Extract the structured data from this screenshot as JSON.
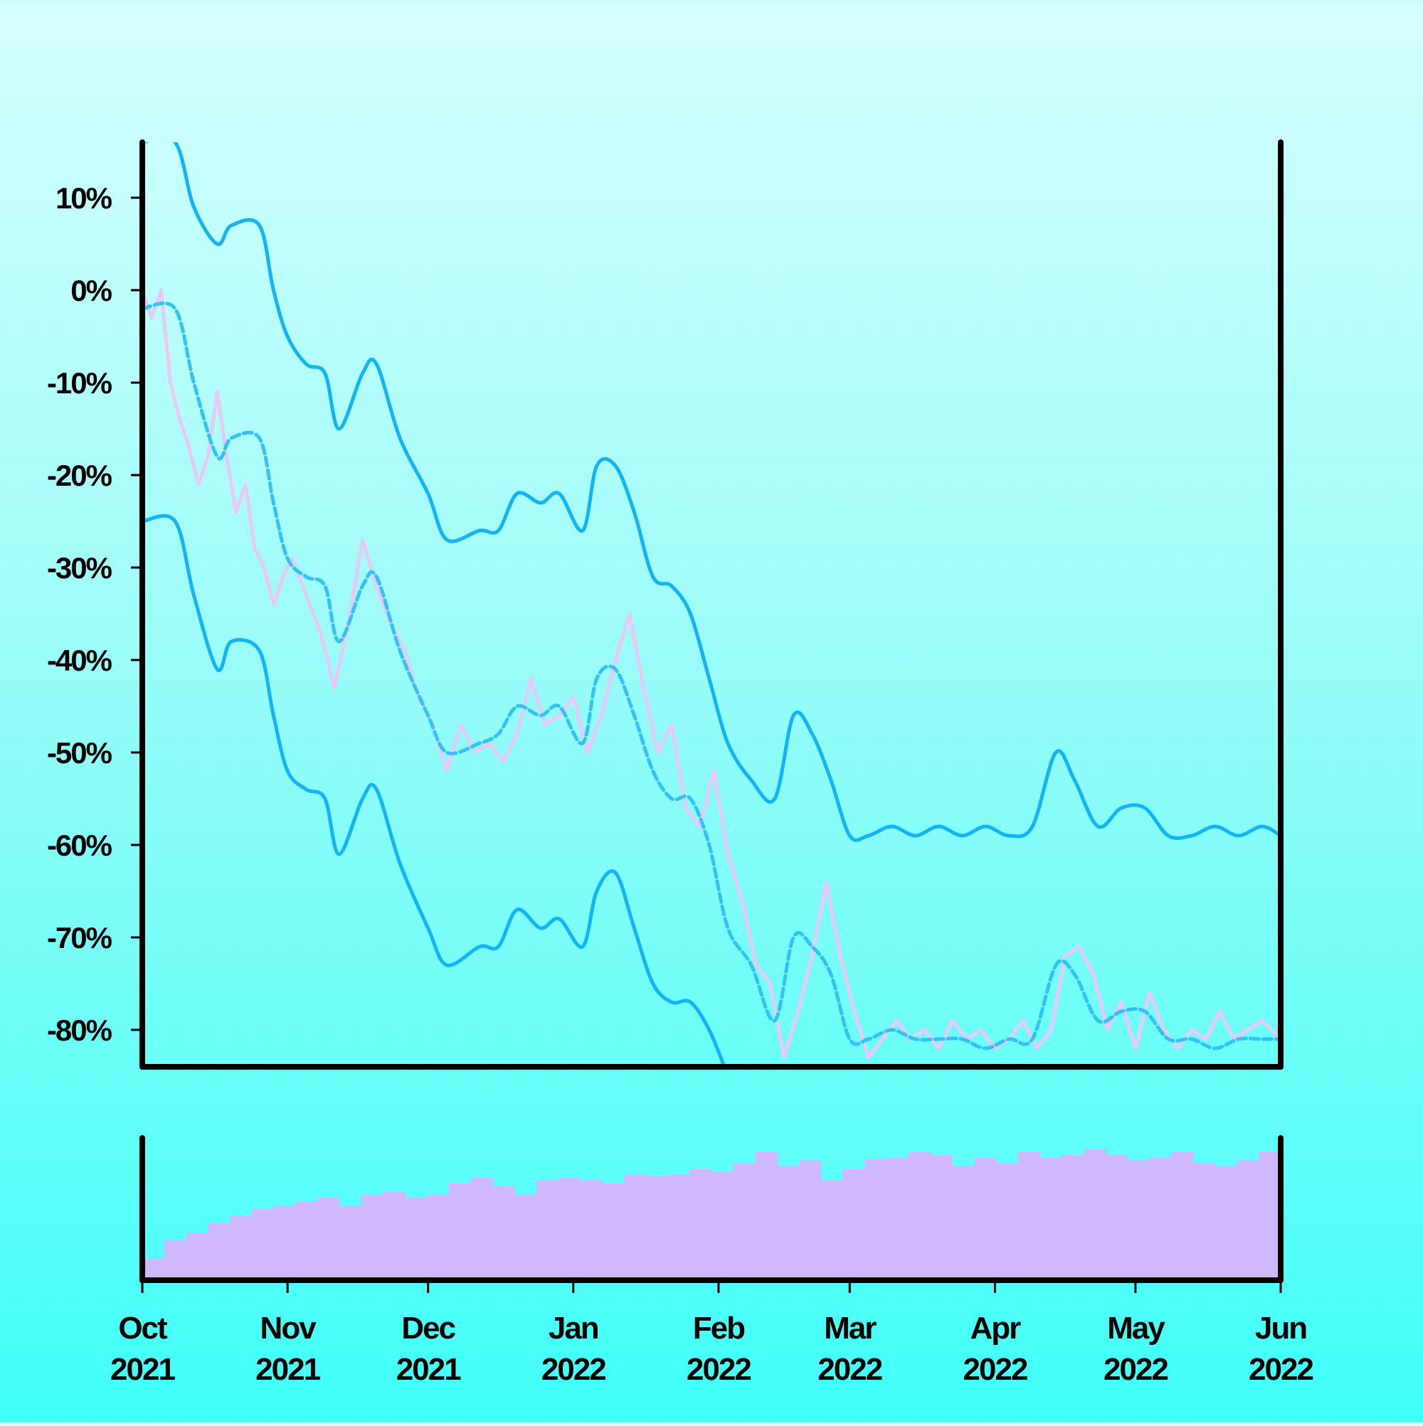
{
  "chart_data": [
    {
      "type": "line",
      "panel": "price",
      "title": "",
      "xlabel": "",
      "ylabel": "",
      "y_unit": "%",
      "ylim": [
        -84,
        16
      ],
      "xlim": [
        "2021-10-01",
        "2022-06-01"
      ],
      "grid": false,
      "legend": "none",
      "y_ticks": [
        "10%",
        "0%",
        "-10%",
        "-20%",
        "-30%",
        "-40%",
        "-50%",
        "-60%",
        "-70%",
        "-80%"
      ],
      "y_tick_values": [
        10,
        0,
        -10,
        -20,
        -30,
        -40,
        -50,
        -60,
        -70,
        -80
      ],
      "x_ticks": [
        {
          "month": "Oct",
          "year": "2021",
          "date": "2021-10-01"
        },
        {
          "month": "Nov",
          "year": "2021",
          "date": "2021-11-01"
        },
        {
          "month": "Dec",
          "year": "2021",
          "date": "2021-12-01"
        },
        {
          "month": "Jan",
          "year": "2022",
          "date": "2022-01-01"
        },
        {
          "month": "Feb",
          "year": "2022",
          "date": "2022-02-01"
        },
        {
          "month": "Mar",
          "year": "2022",
          "date": "2022-03-01"
        },
        {
          "month": "Apr",
          "year": "2022",
          "date": "2022-04-01"
        },
        {
          "month": "May",
          "year": "2022",
          "date": "2022-05-01"
        },
        {
          "month": "Jun",
          "year": "2022",
          "date": "2022-06-01"
        }
      ],
      "series": [
        {
          "role": "upper-band",
          "style": "solid",
          "color": "#12b4f5",
          "x": [
            "2021-10-01",
            "2021-10-08",
            "2021-10-12",
            "2021-10-17",
            "2021-10-20",
            "2021-10-26",
            "2021-10-29",
            "2021-11-01",
            "2021-11-05",
            "2021-11-09",
            "2021-11-12",
            "2021-11-17",
            "2021-11-20",
            "2021-11-25",
            "2021-12-01",
            "2021-12-05",
            "2021-12-12",
            "2021-12-16",
            "2021-12-20",
            "2021-12-25",
            "2021-12-29",
            "2022-01-03",
            "2022-01-06",
            "2022-01-10",
            "2022-01-14",
            "2022-01-18",
            "2022-01-22",
            "2022-01-26",
            "2022-01-30",
            "2022-02-03",
            "2022-02-08",
            "2022-02-13",
            "2022-02-17",
            "2022-02-21",
            "2022-02-25",
            "2022-03-01",
            "2022-03-05",
            "2022-03-10",
            "2022-03-15",
            "2022-03-20",
            "2022-03-25",
            "2022-03-30",
            "2022-04-04",
            "2022-04-09",
            "2022-04-14",
            "2022-04-18",
            "2022-04-23",
            "2022-04-28",
            "2022-05-03",
            "2022-05-08",
            "2022-05-13",
            "2022-05-18",
            "2022-05-23",
            "2022-05-28",
            "2022-06-01"
          ],
          "y": [
            16,
            16,
            9,
            5,
            7,
            7,
            0,
            -5,
            -8,
            -9,
            -15,
            -9,
            -8,
            -16,
            -22,
            -27,
            -26,
            -26,
            -22,
            -23,
            -22,
            -26,
            -19,
            -19,
            -24,
            -31,
            -32,
            -35,
            -42,
            -49,
            -53,
            -55,
            -46,
            -48,
            -53,
            -59,
            -59,
            -58,
            -59,
            -58,
            -59,
            -58,
            -59,
            -58,
            -50,
            -53,
            -58,
            -56,
            -56,
            -59,
            -59,
            -58,
            -59,
            -58,
            -59
          ]
        },
        {
          "role": "center-line",
          "style": "dashed",
          "color": "#34c2f6",
          "x": [
            "2021-10-01",
            "2021-10-08",
            "2021-10-12",
            "2021-10-17",
            "2021-10-20",
            "2021-10-26",
            "2021-10-29",
            "2021-11-01",
            "2021-11-05",
            "2021-11-09",
            "2021-11-12",
            "2021-11-17",
            "2021-11-20",
            "2021-11-25",
            "2021-12-01",
            "2021-12-05",
            "2021-12-12",
            "2021-12-16",
            "2021-12-20",
            "2021-12-25",
            "2021-12-29",
            "2022-01-03",
            "2022-01-06",
            "2022-01-10",
            "2022-01-14",
            "2022-01-18",
            "2022-01-22",
            "2022-01-26",
            "2022-01-30",
            "2022-02-03",
            "2022-02-08",
            "2022-02-13",
            "2022-02-17",
            "2022-02-21",
            "2022-02-25",
            "2022-03-01",
            "2022-03-05",
            "2022-03-10",
            "2022-03-15",
            "2022-03-20",
            "2022-03-25",
            "2022-03-30",
            "2022-04-04",
            "2022-04-09",
            "2022-04-14",
            "2022-04-18",
            "2022-04-23",
            "2022-04-28",
            "2022-05-03",
            "2022-05-08",
            "2022-05-13",
            "2022-05-18",
            "2022-05-23",
            "2022-05-28",
            "2022-06-01"
          ],
          "y": [
            -2,
            -2,
            -10,
            -18,
            -16,
            -16,
            -23,
            -29,
            -31,
            -32,
            -38,
            -32,
            -31,
            -39,
            -46,
            -50,
            -49,
            -48,
            -45,
            -46,
            -45,
            -49,
            -42,
            -41,
            -46,
            -52,
            -55,
            -55,
            -60,
            -69,
            -73,
            -79,
            -70,
            -71,
            -74,
            -81,
            -81,
            -80,
            -81,
            -81,
            -81,
            -82,
            -81,
            -81,
            -73,
            -74,
            -79,
            -78,
            -78,
            -81,
            -81,
            -82,
            -81,
            -81,
            -81
          ]
        },
        {
          "role": "lower-band",
          "style": "solid",
          "color": "#12b4f5",
          "x": [
            "2021-10-01",
            "2021-10-08",
            "2021-10-12",
            "2021-10-17",
            "2021-10-20",
            "2021-10-26",
            "2021-10-29",
            "2021-11-01",
            "2021-11-05",
            "2021-11-09",
            "2021-11-12",
            "2021-11-17",
            "2021-11-20",
            "2021-11-25",
            "2021-12-01",
            "2021-12-05",
            "2021-12-12",
            "2021-12-16",
            "2021-12-20",
            "2021-12-25",
            "2021-12-29",
            "2022-01-03",
            "2022-01-06",
            "2022-01-10",
            "2022-01-14",
            "2022-01-18",
            "2022-01-22",
            "2022-01-26",
            "2022-01-30",
            "2022-02-03"
          ],
          "y": [
            -25,
            -25,
            -33,
            -41,
            -38,
            -39,
            -46,
            -52,
            -54,
            -55,
            -61,
            -55,
            -54,
            -62,
            -69,
            -73,
            -71,
            -71,
            -67,
            -69,
            -68,
            -71,
            -65,
            -63,
            -69,
            -75,
            -77,
            -77,
            -80,
            -85
          ]
        },
        {
          "role": "price",
          "style": "solid",
          "color": "#e8c9f8",
          "x": [
            "2021-10-01",
            "2021-10-03",
            "2021-10-05",
            "2021-10-07",
            "2021-10-09",
            "2021-10-11",
            "2021-10-13",
            "2021-10-15",
            "2021-10-17",
            "2021-10-19",
            "2021-10-21",
            "2021-10-23",
            "2021-10-25",
            "2021-10-27",
            "2021-10-29",
            "2021-10-31",
            "2021-11-02",
            "2021-11-05",
            "2021-11-08",
            "2021-11-11",
            "2021-11-14",
            "2021-11-17",
            "2021-11-20",
            "2021-11-23",
            "2021-11-26",
            "2021-11-29",
            "2021-12-02",
            "2021-12-05",
            "2021-12-08",
            "2021-12-11",
            "2021-12-14",
            "2021-12-17",
            "2021-12-20",
            "2021-12-23",
            "2021-12-26",
            "2021-12-29",
            "2022-01-01",
            "2022-01-04",
            "2022-01-07",
            "2022-01-10",
            "2022-01-13",
            "2022-01-16",
            "2022-01-19",
            "2022-01-22",
            "2022-01-25",
            "2022-01-28",
            "2022-01-31",
            "2022-02-03",
            "2022-02-06",
            "2022-02-09",
            "2022-02-12",
            "2022-02-15",
            "2022-02-18",
            "2022-02-21",
            "2022-02-24",
            "2022-02-27",
            "2022-03-02",
            "2022-03-05",
            "2022-03-08",
            "2022-03-11",
            "2022-03-14",
            "2022-03-17",
            "2022-03-20",
            "2022-03-23",
            "2022-03-26",
            "2022-03-29",
            "2022-04-01",
            "2022-04-04",
            "2022-04-07",
            "2022-04-10",
            "2022-04-13",
            "2022-04-16",
            "2022-04-19",
            "2022-04-22",
            "2022-04-25",
            "2022-04-28",
            "2022-05-01",
            "2022-05-04",
            "2022-05-07",
            "2022-05-10",
            "2022-05-13",
            "2022-05-16",
            "2022-05-19",
            "2022-05-22",
            "2022-05-25",
            "2022-05-28",
            "2022-06-01"
          ],
          "y": [
            0,
            -3,
            0,
            -10,
            -14,
            -17,
            -21,
            -18,
            -11,
            -18,
            -24,
            -21,
            -28,
            -30,
            -34,
            -31,
            -29,
            -33,
            -37,
            -43,
            -36,
            -27,
            -32,
            -36,
            -39,
            -44,
            -47,
            -52,
            -47,
            -50,
            -49,
            -51,
            -48,
            -42,
            -47,
            -46,
            -44,
            -50,
            -46,
            -40,
            -35,
            -43,
            -50,
            -47,
            -56,
            -58,
            -52,
            -61,
            -66,
            -73,
            -75,
            -83,
            -78,
            -72,
            -64,
            -72,
            -78,
            -83,
            -81,
            -79,
            -81,
            -80,
            -82,
            -79,
            -81,
            -80,
            -82,
            -81,
            -79,
            -82,
            -80,
            -72,
            -71,
            -74,
            -80,
            -77,
            -82,
            -76,
            -80,
            -82,
            -80,
            -81,
            -78,
            -81,
            -80,
            -79,
            -81
          ]
        }
      ]
    },
    {
      "type": "bar",
      "panel": "volume",
      "title": "",
      "xlabel": "",
      "ylabel": "",
      "ylim": [
        0,
        1
      ],
      "grid": false,
      "legend": "none",
      "color": "#d0b8ff",
      "x_start": "2021-10-01",
      "x_end": "2022-06-01",
      "values": [
        0.15,
        0.28,
        0.33,
        0.4,
        0.45,
        0.5,
        0.52,
        0.55,
        0.58,
        0.52,
        0.6,
        0.62,
        0.58,
        0.6,
        0.68,
        0.72,
        0.66,
        0.6,
        0.7,
        0.72,
        0.7,
        0.68,
        0.74,
        0.73,
        0.74,
        0.78,
        0.76,
        0.82,
        0.9,
        0.8,
        0.84,
        0.7,
        0.78,
        0.85,
        0.86,
        0.9,
        0.88,
        0.8,
        0.86,
        0.82,
        0.9,
        0.86,
        0.88,
        0.92,
        0.88,
        0.84,
        0.86,
        0.9,
        0.82,
        0.8,
        0.84,
        0.9
      ]
    }
  ]
}
